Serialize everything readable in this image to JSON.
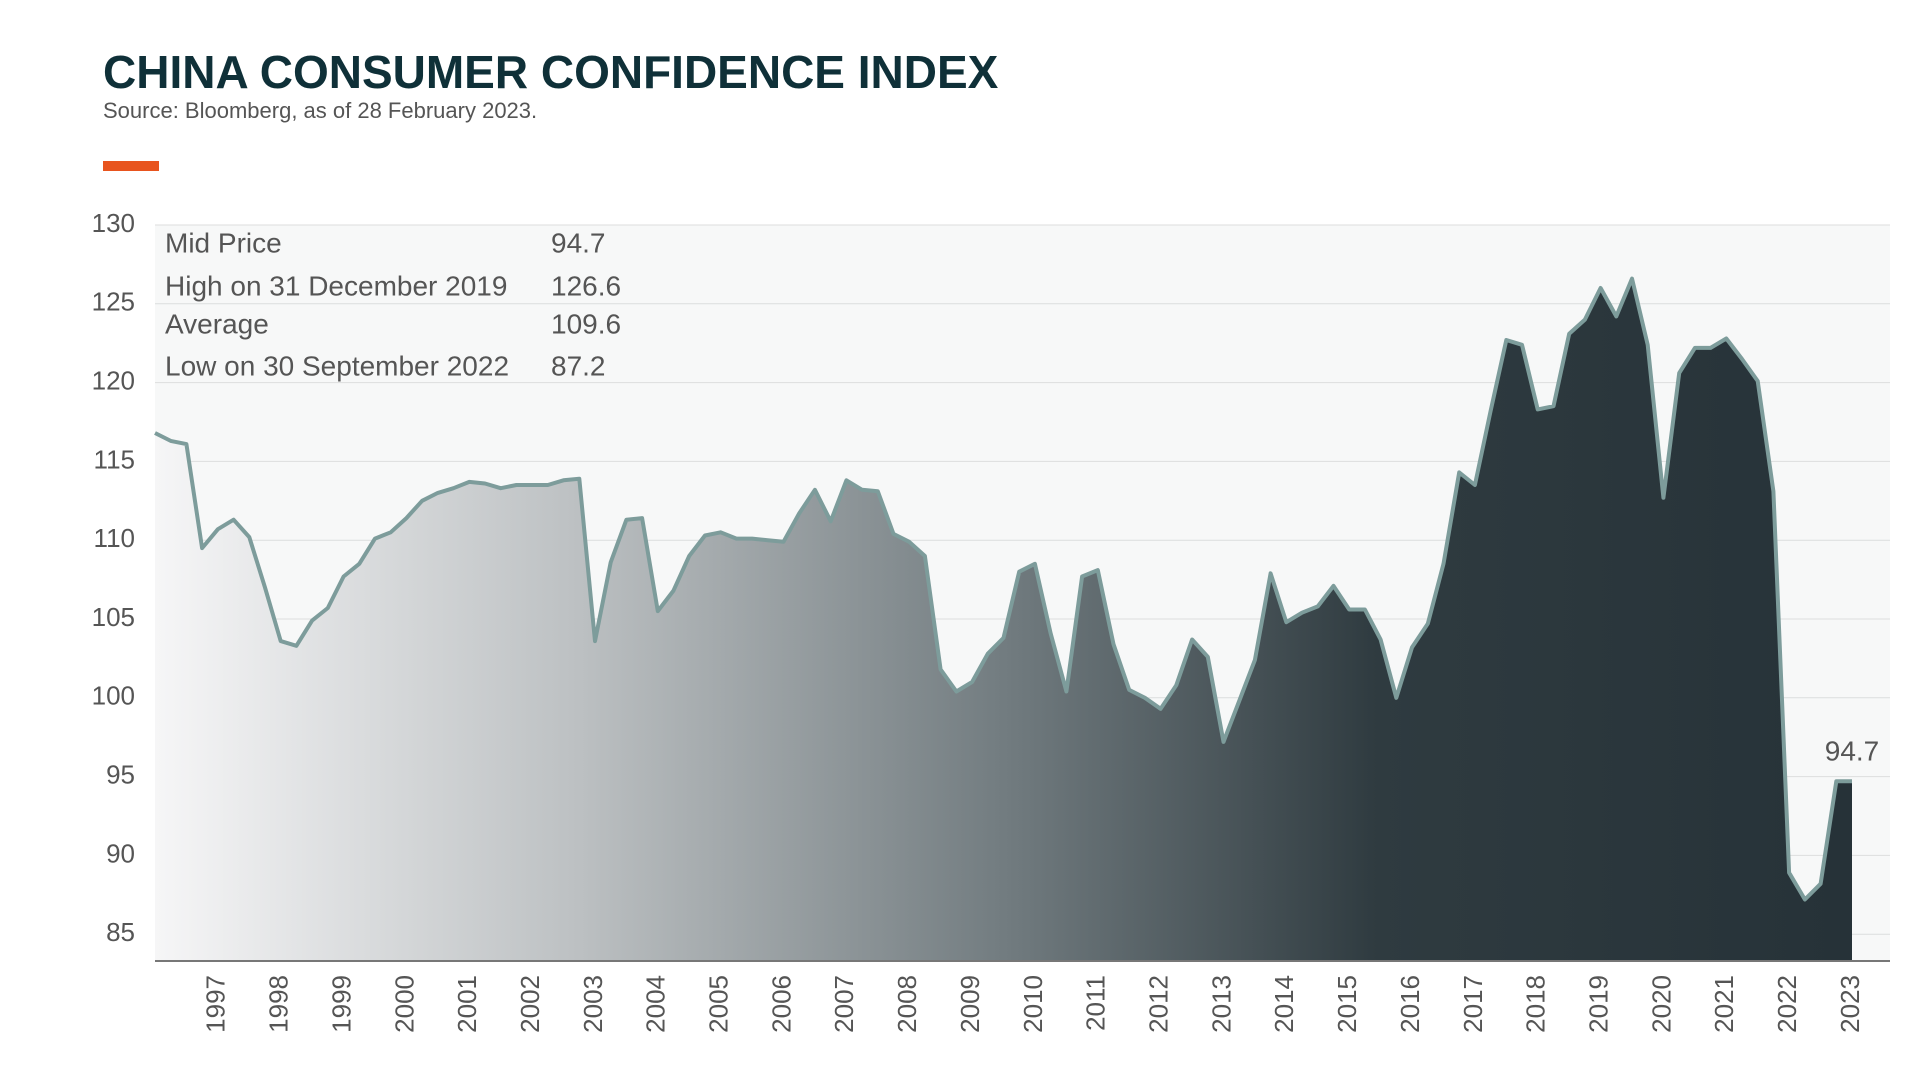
{
  "chart_data": {
    "type": "area",
    "title": "CHINA CONSUMER CONFIDENCE INDEX",
    "subtitle": "Source: Bloomberg, as of 28 February 2023.",
    "stats": [
      {
        "label": "Mid Price",
        "value": 94.7
      },
      {
        "label": "High on 31 December 2019",
        "value": 126.6
      },
      {
        "label": "Average",
        "value": 109.6
      },
      {
        "label": "Low on 30 September 2022",
        "value": 87.2
      }
    ],
    "categories": [
      null,
      null,
      null,
      null,
      "1997",
      null,
      null,
      null,
      "1998",
      null,
      null,
      null,
      "1999",
      null,
      null,
      null,
      "2000",
      null,
      null,
      null,
      "2001",
      null,
      null,
      null,
      "2002",
      null,
      null,
      null,
      "2003",
      null,
      null,
      null,
      "2004",
      null,
      null,
      null,
      "2005",
      null,
      null,
      null,
      "2006",
      null,
      null,
      null,
      "2007",
      null,
      null,
      null,
      "2008",
      null,
      null,
      null,
      "2009",
      null,
      null,
      null,
      "2010",
      null,
      null,
      null,
      "2011",
      null,
      null,
      null,
      "2012",
      null,
      null,
      null,
      "2013",
      null,
      null,
      null,
      "2014",
      null,
      null,
      null,
      "2015",
      null,
      null,
      null,
      "2016",
      null,
      null,
      null,
      "2017",
      null,
      null,
      null,
      "2018",
      null,
      null,
      null,
      "2019",
      null,
      null,
      null,
      "2020",
      null,
      null,
      null,
      "2021",
      null,
      null,
      null,
      "2022",
      null,
      null,
      null,
      "2023"
    ],
    "values": [
      116.8,
      116.3,
      116.1,
      109.5,
      110.7,
      111.3,
      110.2,
      107.0,
      103.6,
      103.3,
      104.9,
      105.7,
      107.7,
      108.5,
      110.1,
      110.5,
      111.4,
      112.5,
      113.0,
      113.3,
      113.7,
      113.6,
      113.3,
      113.5,
      113.5,
      113.5,
      113.8,
      113.9,
      103.6,
      108.6,
      111.3,
      111.4,
      105.5,
      106.8,
      109.0,
      110.3,
      110.5,
      110.1,
      110.1,
      110.0,
      109.9,
      111.7,
      113.2,
      111.2,
      113.8,
      113.2,
      113.1,
      110.4,
      109.9,
      109.0,
      101.8,
      100.4,
      101.0,
      102.8,
      103.8,
      108.0,
      108.5,
      104.1,
      100.4,
      107.7,
      108.1,
      103.4,
      100.5,
      100.0,
      99.3,
      100.8,
      103.7,
      102.6,
      97.2,
      99.8,
      102.4,
      107.9,
      104.8,
      105.4,
      105.8,
      107.1,
      105.6,
      105.6,
      103.7,
      100.0,
      103.2,
      104.7,
      108.5,
      114.3,
      113.5,
      118.2,
      122.7,
      122.4,
      118.3,
      118.5,
      123.1,
      124.0,
      126.0,
      124.2,
      126.6,
      122.4,
      112.7,
      120.6,
      122.2,
      122.2,
      122.8,
      121.5,
      120.1,
      113.1,
      88.9,
      87.2,
      88.2,
      94.7,
      94.7
    ],
    "color": "#7d9c9b",
    "ylim": [
      83.3,
      130
    ],
    "yticks": [
      85,
      90,
      95,
      100,
      105,
      110,
      115,
      120,
      125,
      130
    ],
    "grid": true
  }
}
